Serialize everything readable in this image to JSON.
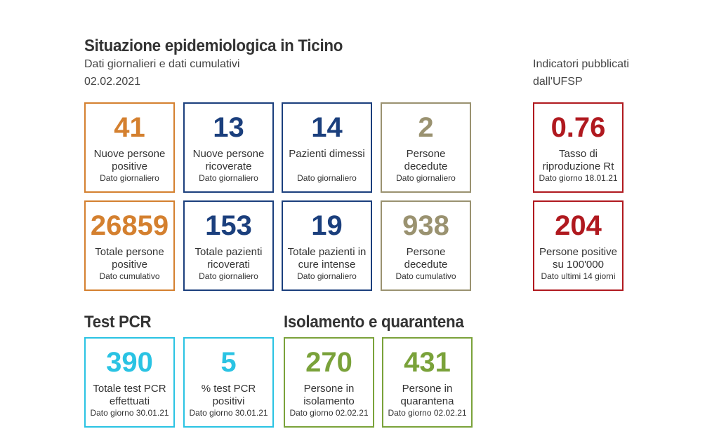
{
  "header": {
    "title": "Situazione epidemiologica in Ticino",
    "subtitle": "Dati giornalieri e dati cumulativi",
    "date": "02.02.2021"
  },
  "ufsp": {
    "line1": "Indicatori pubblicati",
    "line2": "dall'UFSP"
  },
  "sections": {
    "pcr_title": "Test PCR",
    "isolation_title": "Isolamento e quarantena"
  },
  "cards": {
    "new_positive": {
      "value": "41",
      "label": "Nuove persone positive",
      "note": "Dato giornaliero"
    },
    "new_hospitalized": {
      "value": "13",
      "label": "Nuove persone ricoverate",
      "note": "Dato giornaliero"
    },
    "discharged": {
      "value": "14",
      "label": "Pazienti dimessi",
      "note": "Dato giornaliero"
    },
    "deceased": {
      "value": "2",
      "label": "Persone decedute",
      "note": "Dato giornaliero"
    },
    "total_positive": {
      "value": "26859",
      "label": "Totale persone positive",
      "note": "Dato cumulativo"
    },
    "total_hospitalized": {
      "value": "153",
      "label": "Totale pazienti ricoverati",
      "note": "Dato giornaliero"
    },
    "intensive_care": {
      "value": "19",
      "label": "Totale pazienti in cure intense",
      "note": "Dato giornaliero"
    },
    "total_deceased": {
      "value": "938",
      "label": "Persone decedute",
      "note": "Dato cumulativo"
    },
    "rt": {
      "value": "0.76",
      "label": "Tasso di riproduzione Rt",
      "note": "Dato giorno 18.01.21"
    },
    "incidence": {
      "value": "204",
      "label": "Persone positive su 100'000",
      "note": "Dato ultimi 14 giorni"
    },
    "pcr_total": {
      "value": "390",
      "label": "Totale test PCR effettuati",
      "note": "Dato giorno 30.01.21"
    },
    "pcr_positive_pct": {
      "value": "5",
      "label": "% test PCR positivi",
      "note": "Dato giorno 30.01.21"
    },
    "isolation": {
      "value": "270",
      "label": "Persone in isolamento",
      "note": "Dato giorno 02.02.21"
    },
    "quarantine": {
      "value": "431",
      "label": "Persone in quarantena",
      "note": "Dato giorno 02.02.21"
    }
  },
  "colors": {
    "orange": "#d4802f",
    "blue": "#1b3f7d",
    "olive": "#9a9270",
    "red": "#b0191f",
    "cyan": "#2ac3e3",
    "green": "#7aa23a"
  }
}
